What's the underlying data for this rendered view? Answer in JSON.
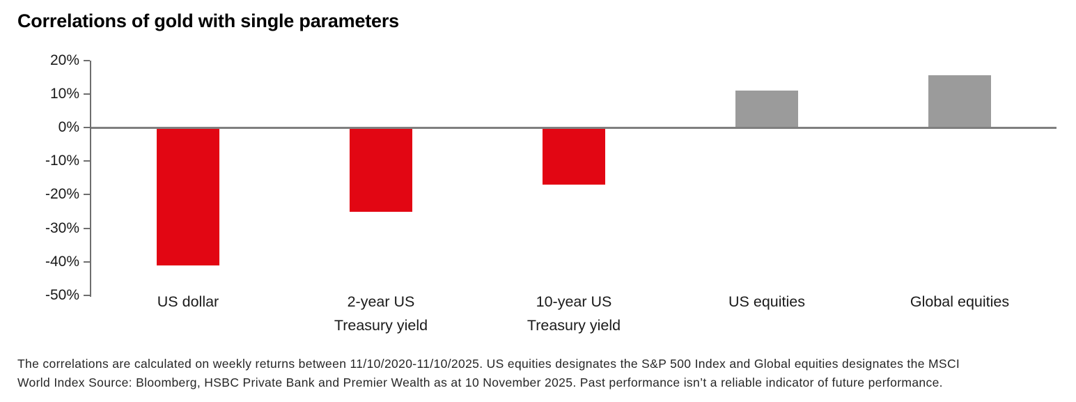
{
  "title": "Correlations of gold with single parameters",
  "chart_data": {
    "type": "bar",
    "categories": [
      "US dollar",
      "2-year US Treasury yield",
      "10-year US Treasury yield",
      "US equities",
      "Global equities"
    ],
    "category_label_lines": [
      [
        "US dollar"
      ],
      [
        "2-year US",
        "Treasury yield"
      ],
      [
        "10-year US",
        "Treasury yield"
      ],
      [
        "US equities"
      ],
      [
        "Global equities"
      ]
    ],
    "values": [
      -41,
      -25,
      -17,
      11,
      15.5
    ],
    "unit": "%",
    "title": "Correlations of gold with single parameters",
    "xlabel": "",
    "ylabel": "",
    "ylim": [
      -50,
      20
    ],
    "yticks": [
      20,
      10,
      0,
      -10,
      -20,
      -30,
      -40,
      -50
    ],
    "ytick_labels": [
      "20%",
      "10%",
      "0%",
      "-10%",
      "-20%",
      "-30%",
      "-40%",
      "-50%"
    ],
    "grid": false,
    "legend": false,
    "colors": {
      "negative_bar": "#e20613",
      "positive_bar": "#9b9b9b",
      "axis": "#6e6e6e",
      "zero_line": "#7f7f7f",
      "text": "#1a1a1a"
    }
  },
  "footnote": {
    "lines": [
      "The correlations are calculated on weekly returns between 11/10/2020-11/10/2025. US equities designates the S&P 500 Index and Global equities designates the MSCI",
      "World Index Source: Bloomberg, HSBC Private Bank and Premier Wealth as at 10 November 2025. Past performance isn’t a reliable indicator of future performance."
    ]
  }
}
